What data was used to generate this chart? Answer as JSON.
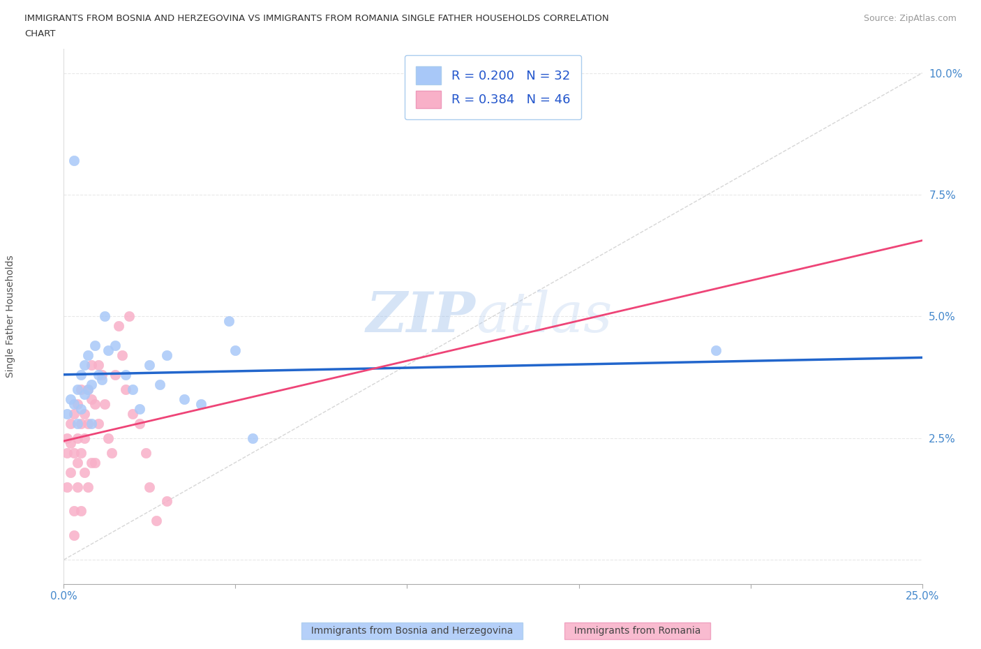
{
  "title_line1": "IMMIGRANTS FROM BOSNIA AND HERZEGOVINA VS IMMIGRANTS FROM ROMANIA SINGLE FATHER HOUSEHOLDS CORRELATION",
  "title_line2": "CHART",
  "source": "Source: ZipAtlas.com",
  "ylabel": "Single Father Households",
  "xlim": [
    0.0,
    0.25
  ],
  "ylim": [
    -0.005,
    0.105
  ],
  "color_bosnia": "#a8c8f8",
  "color_romania": "#f8b0c8",
  "line_color_bosnia": "#2266cc",
  "line_color_romania": "#ee4477",
  "ref_line_color": "#cccccc",
  "grid_color": "#e8e8e8",
  "R_bosnia": 0.2,
  "N_bosnia": 32,
  "R_romania": 0.384,
  "N_romania": 46,
  "watermark_zip": "ZIP",
  "watermark_atlas": "atlas",
  "bosnia_x": [
    0.001,
    0.002,
    0.003,
    0.003,
    0.004,
    0.005,
    0.005,
    0.006,
    0.006,
    0.007,
    0.007,
    0.008,
    0.008,
    0.009,
    0.01,
    0.011,
    0.012,
    0.013,
    0.015,
    0.018,
    0.02,
    0.022,
    0.025,
    0.028,
    0.03,
    0.035,
    0.04,
    0.048,
    0.05,
    0.055,
    0.19,
    0.004
  ],
  "bosnia_y": [
    0.03,
    0.033,
    0.032,
    0.082,
    0.035,
    0.031,
    0.038,
    0.034,
    0.04,
    0.035,
    0.042,
    0.036,
    0.028,
    0.044,
    0.038,
    0.037,
    0.05,
    0.043,
    0.044,
    0.038,
    0.035,
    0.031,
    0.04,
    0.036,
    0.042,
    0.033,
    0.032,
    0.049,
    0.043,
    0.025,
    0.043,
    0.028
  ],
  "romania_x": [
    0.001,
    0.001,
    0.001,
    0.002,
    0.002,
    0.002,
    0.003,
    0.003,
    0.003,
    0.003,
    0.004,
    0.004,
    0.004,
    0.004,
    0.005,
    0.005,
    0.005,
    0.005,
    0.006,
    0.006,
    0.006,
    0.007,
    0.007,
    0.007,
    0.008,
    0.008,
    0.008,
    0.009,
    0.009,
    0.01,
    0.01,
    0.011,
    0.012,
    0.013,
    0.014,
    0.015,
    0.016,
    0.017,
    0.018,
    0.019,
    0.02,
    0.022,
    0.024,
    0.025,
    0.027,
    0.03
  ],
  "romania_y": [
    0.025,
    0.022,
    0.015,
    0.028,
    0.024,
    0.018,
    0.03,
    0.022,
    0.01,
    0.005,
    0.032,
    0.025,
    0.02,
    0.015,
    0.035,
    0.028,
    0.022,
    0.01,
    0.03,
    0.025,
    0.018,
    0.035,
    0.028,
    0.015,
    0.04,
    0.033,
    0.02,
    0.032,
    0.02,
    0.04,
    0.028,
    0.038,
    0.032,
    0.025,
    0.022,
    0.038,
    0.048,
    0.042,
    0.035,
    0.05,
    0.03,
    0.028,
    0.022,
    0.015,
    0.008,
    0.012
  ]
}
